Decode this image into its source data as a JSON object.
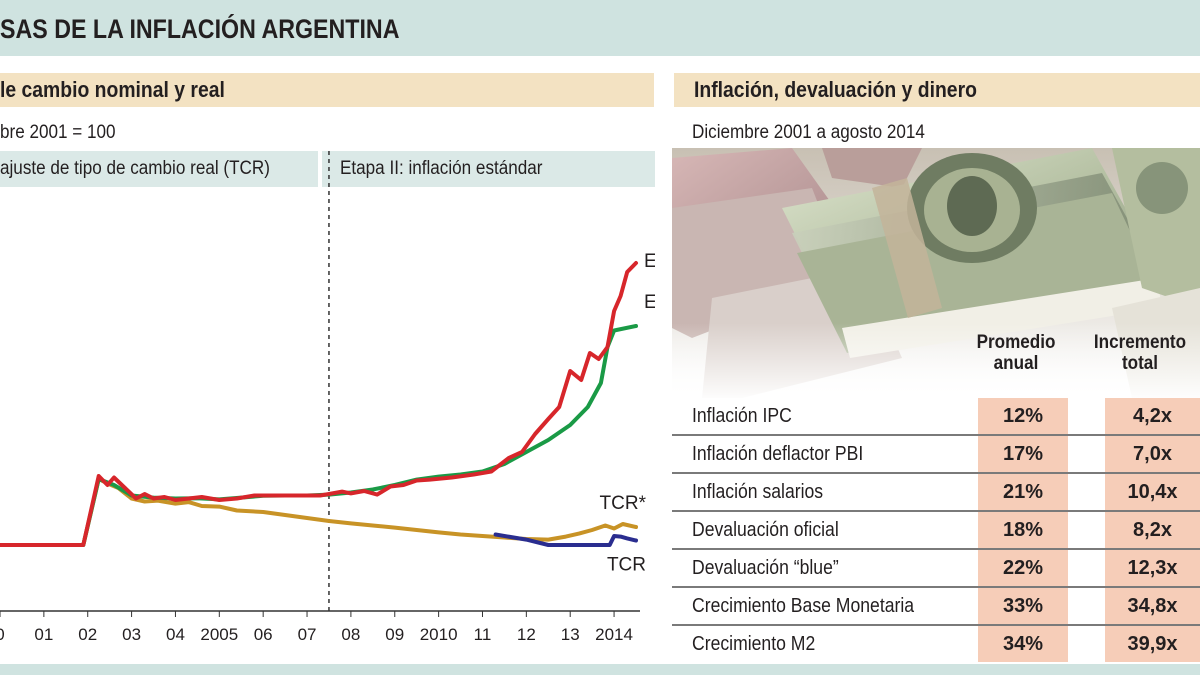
{
  "header": {
    "title": "SAS DE LA INFLACIÓN ARGENTINA"
  },
  "left_panel": {
    "title": "le cambio nominal y real",
    "subtitle": "bre 2001 = 100",
    "stage1": "ajuste de tipo de cambio real (TCR)",
    "stage2": "Etapa II: inflación estándar"
  },
  "right_panel": {
    "title": "Inflación, devaluación y dinero",
    "subtitle": "Diciembre 2001 a agosto 2014",
    "photo_icon": "dollar-bills-photo",
    "col1_header_line1": "Promedio",
    "col1_header_line2": "anual",
    "col2_header_line1": "Incremento",
    "col2_header_line2": "total",
    "rows": [
      {
        "label": "Inflación IPC",
        "avg": "12%",
        "total": "4,2x"
      },
      {
        "label": "Inflación deflactor PBI",
        "avg": "17%",
        "total": "7,0x"
      },
      {
        "label": "Inflación salarios",
        "avg": "21%",
        "total": "10,4x"
      },
      {
        "label": "Devaluación oficial",
        "avg": "18%",
        "total": "8,2x"
      },
      {
        "label": "Devaluación “blue”",
        "avg": "22%",
        "total": "12,3x"
      },
      {
        "label": "Crecimiento Base Monetaria",
        "avg": "33%",
        "total": "34,8x"
      },
      {
        "label": "Crecimiento M2",
        "avg": "34%",
        "total": "39,9x"
      }
    ]
  },
  "colors": {
    "E_star": "#d7262b",
    "E": "#1a9a46",
    "TCR_star": "#c89326",
    "TCR": "#2a2d8f"
  },
  "chart_data": {
    "type": "line",
    "title": "le cambio nominal y real",
    "subtitle": "bre 2001 = 100",
    "xlabel": "",
    "ylabel": "",
    "x_tick_labels": [
      "0",
      "01",
      "02",
      "03",
      "04",
      "2005",
      "06",
      "07",
      "08",
      "09",
      "2010",
      "11",
      "12",
      "13",
      "2014"
    ],
    "x_tick_years": [
      2000,
      2001,
      2002,
      2003,
      2004,
      2005,
      2006,
      2007,
      2008,
      2009,
      2010,
      2011,
      2012,
      2013,
      2014
    ],
    "xlim": [
      2000,
      2014.5
    ],
    "ylim": [
      0,
      1300
    ],
    "stage_divider_year": 2007.5,
    "series": [
      {
        "name": "E*",
        "color_key": "E_star",
        "x": [
          2000,
          2001.9,
          2002.25,
          2002.45,
          2002.6,
          2002.85,
          2003.1,
          2003.3,
          2003.5,
          2003.75,
          2004.0,
          2004.3,
          2004.6,
          2005.0,
          2005.4,
          2005.8,
          2006.3,
          2006.8,
          2007.3,
          2007.5,
          2007.8,
          2008.0,
          2008.3,
          2008.6,
          2008.9,
          2009.2,
          2009.5,
          2009.8,
          2010.3,
          2010.8,
          2011.2,
          2011.6,
          2011.9,
          2012.2,
          2012.5,
          2012.75,
          2013.0,
          2013.25,
          2013.45,
          2013.65,
          2013.85,
          2014.0,
          2014.15,
          2014.3,
          2014.5
        ],
        "values": [
          100,
          100,
          330,
          300,
          325,
          290,
          255,
          270,
          255,
          260,
          250,
          255,
          260,
          250,
          255,
          265,
          265,
          265,
          265,
          270,
          278,
          272,
          280,
          268,
          295,
          300,
          315,
          318,
          325,
          335,
          345,
          390,
          410,
          470,
          520,
          560,
          680,
          650,
          740,
          720,
          760,
          880,
          930,
          1010,
          1040
        ]
      },
      {
        "name": "E",
        "color_key": "E",
        "x": [
          2000,
          2001.9,
          2002.25,
          2002.6,
          2003.0,
          2003.5,
          2004.0,
          2004.5,
          2005.0,
          2005.5,
          2006.0,
          2006.5,
          2007.0,
          2007.5,
          2008.0,
          2008.5,
          2009.0,
          2009.5,
          2010.0,
          2010.5,
          2011.0,
          2011.5,
          2012.0,
          2012.5,
          2013.0,
          2013.4,
          2013.7,
          2013.85,
          2014.0,
          2014.5
        ],
        "values": [
          100,
          100,
          320,
          300,
          265,
          258,
          255,
          256,
          252,
          258,
          264,
          265,
          265,
          268,
          275,
          285,
          300,
          318,
          328,
          335,
          345,
          370,
          410,
          450,
          500,
          560,
          640,
          760,
          815,
          830
        ]
      },
      {
        "name": "TCR*",
        "color_key": "TCR_star",
        "x": [
          2000,
          2001.9,
          2002.25,
          2002.45,
          2002.7,
          2003.0,
          2003.3,
          2003.6,
          2004.0,
          2004.3,
          2004.6,
          2005.0,
          2005.4,
          2006.0,
          2006.5,
          2007.0,
          2007.5,
          2008.0,
          2008.5,
          2009.0,
          2009.5,
          2010.0,
          2010.5,
          2011.0,
          2011.5,
          2012.0,
          2012.5,
          2012.9,
          2013.2,
          2013.5,
          2013.8,
          2014.0,
          2014.2,
          2014.5
        ],
        "values": [
          100,
          100,
          320,
          305,
          290,
          255,
          245,
          248,
          238,
          243,
          230,
          228,
          215,
          210,
          200,
          190,
          180,
          172,
          165,
          158,
          150,
          142,
          135,
          130,
          125,
          120,
          118,
          128,
          138,
          150,
          165,
          155,
          170,
          160
        ]
      },
      {
        "name": "TCR",
        "color_key": "TCR",
        "x": [
          2011.3,
          2012.0,
          2012.5,
          2013.0,
          2013.5,
          2013.9,
          2014.0,
          2014.15,
          2014.3,
          2014.5
        ],
        "values": [
          135,
          118,
          100,
          100,
          100,
          100,
          130,
          128,
          122,
          115
        ]
      }
    ],
    "series_labels": [
      "E*",
      "E",
      "TCR*",
      "TCR"
    ]
  }
}
